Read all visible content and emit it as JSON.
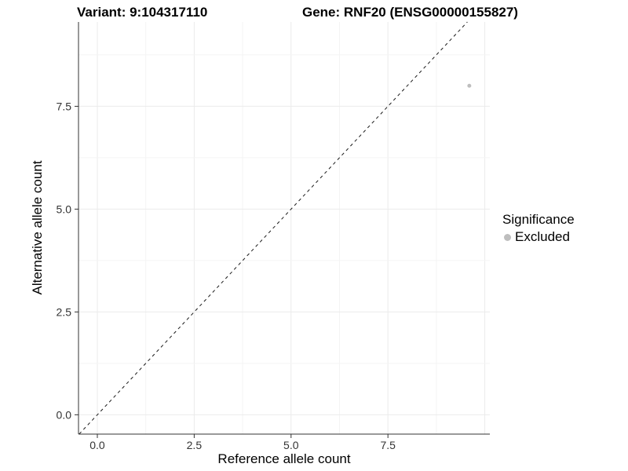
{
  "header": {
    "variant_title": "Variant: 9:104317110",
    "gene_title": "Gene: RNF20 (ENSG00000155827)"
  },
  "chart_data": {
    "type": "scatter",
    "xlabel": "Reference allele count",
    "ylabel": "Alternative allele count",
    "x_ticks": [
      0.0,
      2.5,
      5.0,
      7.5
    ],
    "x_tick_labels": [
      "0.0",
      "2.5",
      "5.0",
      "7.5"
    ],
    "y_ticks": [
      0.0,
      2.5,
      5.0,
      7.5
    ],
    "y_tick_labels": [
      "0.0",
      "2.5",
      "5.0",
      "7.5"
    ],
    "xlim": [
      -0.486,
      10.13
    ],
    "ylim": [
      -0.47,
      9.55
    ],
    "grid": true,
    "major_grid_step": 2.5,
    "minor_grid_step": 1.25,
    "points": [
      {
        "x": 9.6,
        "y": 8.0,
        "series": "Excluded"
      }
    ],
    "point_radius": 2.5,
    "reference_line": {
      "type": "identity",
      "slope": 1,
      "intercept": 0,
      "style": "dashed"
    },
    "legend": {
      "title": "Significance",
      "position": "right",
      "items": [
        {
          "label": "Excluded",
          "color": "#bebebe"
        }
      ]
    },
    "colors": {
      "point": "#bebebe",
      "grid_major": "#ebebeb",
      "grid_minor": "#f4f4f4",
      "axis": "#333333",
      "dashed_line": "#1a1a1a"
    }
  }
}
